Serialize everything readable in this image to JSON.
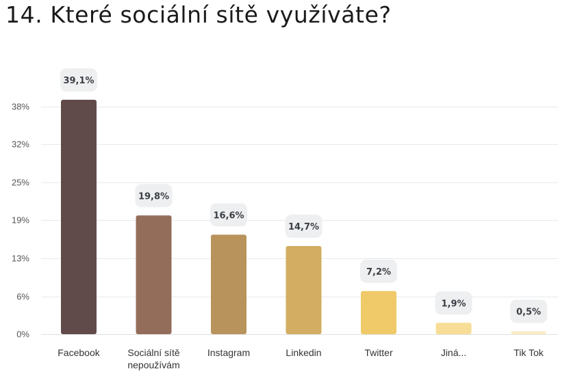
{
  "title": "14. Které sociální sítě využíváte?",
  "chart_data": {
    "type": "bar",
    "title": "14. Které sociální sítě využíváte?",
    "xlabel": "",
    "ylabel": "",
    "categories": [
      [
        "Facebook"
      ],
      [
        "Sociální sítě",
        "nepoužívám"
      ],
      [
        "Instagram"
      ],
      [
        "Linkedin"
      ],
      [
        "Twitter"
      ],
      [
        "Jiná..."
      ],
      [
        "Tik Tok"
      ]
    ],
    "values": [
      39.1,
      19.8,
      16.6,
      14.7,
      7.2,
      1.9,
      0.5
    ],
    "value_labels": [
      "39,1%",
      "19,8%",
      "16,6%",
      "14,7%",
      "7,2%",
      "1,9%",
      "0,5%"
    ],
    "colors": [
      "#614b4a",
      "#946d5a",
      "#b8935b",
      "#d2ad62",
      "#f0ca68",
      "#f7dd96",
      "#fbedc6"
    ],
    "yticks": [
      0,
      6.3,
      12.7,
      19,
      25.3,
      31.7,
      38
    ],
    "ytick_labels": [
      "0%",
      "6%",
      "13%",
      "19%",
      "25%",
      "32%",
      "38%"
    ],
    "ylim": [
      0,
      39.1
    ],
    "grid": true,
    "legend": "none"
  }
}
